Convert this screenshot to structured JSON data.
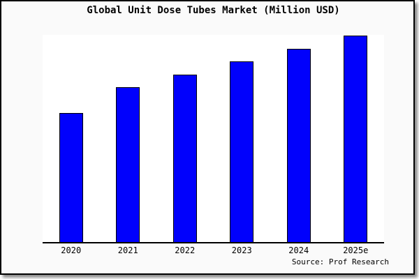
{
  "colors": {
    "bar_fill": "#0101fc",
    "bar_border": "#000000",
    "page_bg": "#fafafa",
    "plot_bg": "#ffffff",
    "axis_color": "#000000",
    "text_color": "#000000"
  },
  "source_credit": "Source: Prof Research",
  "chart_data": {
    "type": "bar",
    "title": "Global Unit Dose Tubes Market (Million USD)",
    "categories": [
      "2020",
      "2021",
      "2022",
      "2023",
      "2024",
      "2025e"
    ],
    "values": [
      500,
      600,
      650,
      700,
      750,
      800
    ],
    "unit": "Million USD",
    "xlabel": "",
    "ylabel": "",
    "ylim": [
      0,
      803
    ],
    "grid": false,
    "legend": false,
    "y_axis_visible": false,
    "note": "No y-axis ticks shown in image; values estimated from relative bar heights (ratio 10:12:13:14:15:16)."
  }
}
